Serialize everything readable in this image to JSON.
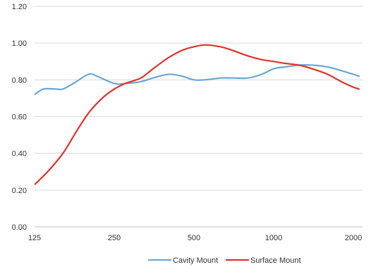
{
  "chart_data": {
    "type": "line",
    "title": "",
    "xlabel": "",
    "ylabel": "",
    "x_scale": "log",
    "x_ticks": [
      125,
      250,
      500,
      1000,
      2000
    ],
    "x_tick_labels": [
      "125",
      "250",
      "500",
      "1000",
      "2000"
    ],
    "x_range": [
      125,
      2000
    ],
    "y_range": [
      0,
      1.2
    ],
    "y_ticks": [
      0,
      0.2,
      0.4,
      0.6,
      0.8,
      1.0,
      1.2
    ],
    "y_tick_labels": [
      "0.00",
      "0.20",
      "0.40",
      "0.60",
      "0.80",
      "1.00",
      "1.20"
    ],
    "grid": "horizontal",
    "legend_position": "bottom",
    "series": [
      {
        "name": "Cavity Mount",
        "color": "#6aa7d6",
        "x": [
          125,
          135,
          150,
          160,
          175,
          200,
          215,
          250,
          275,
          315,
          350,
          400,
          450,
          500,
          550,
          630,
          700,
          800,
          900,
          1000,
          1100,
          1250,
          1400,
          1600,
          1800,
          2000,
          2100
        ],
        "values": [
          0.72,
          0.75,
          0.75,
          0.75,
          0.78,
          0.83,
          0.82,
          0.78,
          0.78,
          0.79,
          0.81,
          0.83,
          0.82,
          0.8,
          0.8,
          0.81,
          0.81,
          0.81,
          0.83,
          0.86,
          0.87,
          0.88,
          0.88,
          0.87,
          0.85,
          0.83,
          0.82
        ]
      },
      {
        "name": "Surface Mount",
        "color": "#e0332b",
        "x": [
          125,
          140,
          160,
          180,
          200,
          225,
          250,
          275,
          315,
          350,
          400,
          450,
          500,
          550,
          630,
          700,
          800,
          900,
          1000,
          1100,
          1250,
          1400,
          1600,
          1800,
          2000,
          2100
        ],
        "values": [
          0.23,
          0.3,
          0.4,
          0.52,
          0.62,
          0.7,
          0.75,
          0.78,
          0.81,
          0.86,
          0.92,
          0.96,
          0.98,
          0.99,
          0.98,
          0.96,
          0.93,
          0.91,
          0.9,
          0.89,
          0.88,
          0.86,
          0.83,
          0.79,
          0.76,
          0.75
        ]
      }
    ]
  }
}
